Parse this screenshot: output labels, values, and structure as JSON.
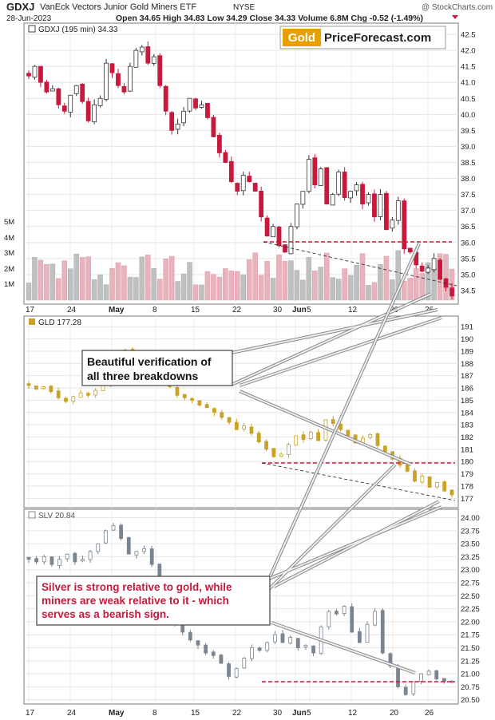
{
  "header": {
    "symbol": "GDXJ",
    "name": "VanEck Vectors Junior Gold Miners ETF",
    "exchange": "NYSE",
    "date": "28-Jun-2023",
    "stats": "Open 34.65  High 34.83  Low 34.29  Close 34.33  Volume 6.8M  Chg -0.52 (-1.49%)",
    "credit": "@ StockCharts.com"
  },
  "logo": {
    "part1": "Gold",
    "part2": "PriceForecast.com"
  },
  "annotations": {
    "box1_line1": "Beautiful verification of",
    "box1_line2": "all three breakdowns",
    "box2_line1": "Silver is strong relative to gold, while",
    "box2_line2": "miners are weak relative to it - which",
    "box2_line3": "serves as a bearish sign."
  },
  "colors": {
    "up_fill": "#ffffff",
    "down_fill": "#c8193c",
    "gld": "#c9a227",
    "slv": "#7a8592",
    "resistance": "#c8193c"
  },
  "chart_data": [
    {
      "type": "candlestick",
      "label": "GDXJ (195 min) 34.33",
      "ylim": [
        34.2,
        42.7
      ],
      "y_ticks": [
        "42.5",
        "42.0",
        "41.5",
        "41.0",
        "40.5",
        "40.0",
        "39.5",
        "39.0",
        "38.5",
        "38.0",
        "37.5",
        "37.0",
        "36.5",
        "36.0",
        "35.5",
        "35.0",
        "34.5"
      ],
      "x_labels": [
        "17",
        "24",
        "May",
        "8",
        "15",
        "22",
        "30",
        "Jun",
        "5",
        "12",
        "20",
        "26"
      ],
      "volume_labels": [
        "5M",
        "4M",
        "3M",
        "2M",
        "1M"
      ],
      "close": [
        41.2,
        41.5,
        41.0,
        40.7,
        40.8,
        40.3,
        40.1,
        40.6,
        40.9,
        40.4,
        39.8,
        40.3,
        40.5,
        41.6,
        41.3,
        40.9,
        40.7,
        41.5,
        42.0,
        42.1,
        41.6,
        41.8,
        40.9,
        40.1,
        39.5,
        39.7,
        40.1,
        40.5,
        40.2,
        40.3,
        39.9,
        39.3,
        38.8,
        38.5,
        37.9,
        37.6,
        38.1,
        37.9,
        37.6,
        36.8,
        36.2,
        36.5,
        35.9,
        35.7,
        36.5,
        37.2,
        37.6,
        38.6,
        37.8,
        38.3,
        37.2,
        37.5,
        38.2,
        37.4,
        37.6,
        37.8,
        37.2,
        37.5,
        36.8,
        37.5,
        36.4,
        36.7,
        37.3,
        35.8,
        35.7,
        35.3,
        35.1,
        35.2,
        35.5,
        34.85,
        34.6,
        34.33
      ]
    },
    {
      "type": "candlestick",
      "label": "GLD 177.28",
      "ylim": [
        176.5,
        191.6
      ],
      "y_ticks": [
        "191",
        "190",
        "189",
        "188",
        "187",
        "186",
        "185",
        "184",
        "183",
        "182",
        "181",
        "180",
        "179",
        "178",
        "177"
      ],
      "close": [
        186.2,
        185.9,
        186.1,
        185.7,
        185.2,
        184.9,
        185.3,
        185.6,
        185.4,
        185.8,
        186.4,
        186.8,
        187.5,
        189.1,
        188.6,
        187.4,
        186.9,
        187.3,
        186.3,
        186.1,
        185.4,
        185.2,
        185.0,
        184.6,
        184.4,
        184.0,
        183.6,
        183.2,
        182.6,
        182.9,
        182.3,
        181.6,
        181.0,
        180.4,
        180.6,
        181.4,
        182.1,
        181.8,
        182.4,
        181.7,
        183.4,
        183.1,
        182.6,
        182.1,
        181.5,
        181.9,
        182.2,
        181.3,
        180.8,
        180.2,
        179.7,
        179.2,
        178.4,
        178.8,
        177.9,
        178.3,
        177.6,
        177.28
      ]
    },
    {
      "type": "candlestick",
      "label": "SLV 20.84",
      "ylim": [
        20.45,
        24.1
      ],
      "y_ticks": [
        "24.00",
        "23.75",
        "23.50",
        "23.25",
        "23.00",
        "22.75",
        "22.50",
        "22.25",
        "22.00",
        "21.75",
        "21.50",
        "21.25",
        "21.00",
        "20.75",
        "20.50"
      ],
      "close": [
        23.2,
        23.15,
        23.25,
        23.1,
        23.2,
        23.3,
        23.15,
        23.2,
        23.35,
        23.5,
        23.75,
        23.85,
        23.6,
        23.3,
        23.35,
        23.4,
        23.1,
        22.3,
        22.1,
        21.95,
        21.8,
        21.65,
        21.55,
        21.4,
        21.35,
        21.2,
        20.95,
        21.1,
        21.3,
        21.5,
        21.45,
        21.6,
        21.75,
        21.6,
        21.7,
        21.5,
        21.55,
        21.4,
        21.9,
        22.2,
        22.15,
        22.3,
        21.8,
        21.6,
        21.95,
        22.2,
        21.4,
        21.15,
        20.75,
        20.6,
        20.85,
        21.0,
        21.05,
        20.9,
        20.85,
        20.84
      ]
    }
  ]
}
